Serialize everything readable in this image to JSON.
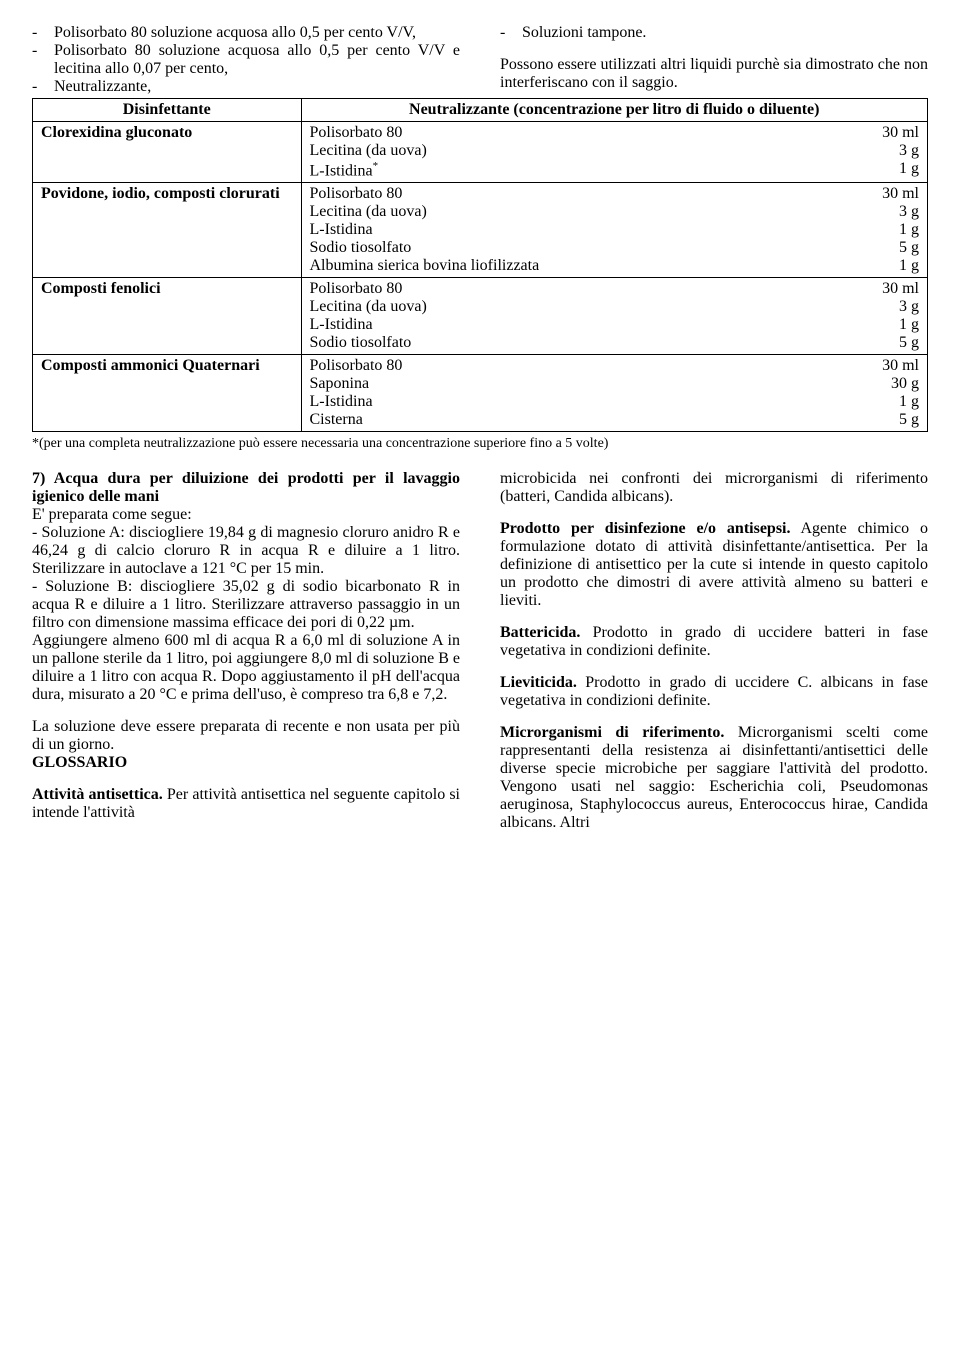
{
  "topLeftItems": [
    "Polisorbato 80 soluzione acquosa allo 0,5 per cento V/V,",
    "Polisorbato 80 soluzione acquosa allo 0,5 per cento V/V e lecitina allo 0,07 per cento,",
    "Neutralizzante,"
  ],
  "topRightItem": "Soluzioni tampone.",
  "topRightPara": "Possono essere utilizzati altri liquidi purchè sia dimostrato che non interferiscano con il saggio.",
  "tableHeader": {
    "left": "Disinfettante",
    "right": "Neutralizzante (concentrazione per litro di fluido o diluente)"
  },
  "tableRows": [
    {
      "disinfectant": "Clorexidina gluconato",
      "ingredients": [
        {
          "name": "Polisorbato 80",
          "amount": "30 ml"
        },
        {
          "name": "Lecitina (da uova)",
          "amount": "3 g"
        },
        {
          "name": "L-Istidina",
          "sup": "*",
          "smallcap": true,
          "amount": "1 g"
        }
      ]
    },
    {
      "disinfectant": "Povidone, iodio, composti clorurati",
      "ingredients": [
        {
          "name": "Polisorbato 80",
          "amount": "30 ml"
        },
        {
          "name": "Lecitina (da uova)",
          "amount": "3 g"
        },
        {
          "name": "L-Istidina",
          "smallcap": true,
          "amount": "1 g"
        },
        {
          "name": "Sodio tiosolfato",
          "amount": "5 g"
        },
        {
          "name": "Albumina sierica bovina liofilizzata",
          "amount": "1 g"
        }
      ]
    },
    {
      "disinfectant": "Composti fenolici",
      "ingredients": [
        {
          "name": "Polisorbato 80",
          "amount": "30 ml"
        },
        {
          "name": "Lecitina (da uova)",
          "amount": "3 g"
        },
        {
          "name": "L-Istidina",
          "smallcap": true,
          "amount": "1 g"
        },
        {
          "name": "Sodio tiosolfato",
          "amount": "5 g"
        }
      ]
    },
    {
      "disinfectant": "Composti ammonici Quaternari",
      "ingredients": [
        {
          "name": "Polisorbato 80",
          "amount": "30 ml"
        },
        {
          "name": "Saponina",
          "amount": "30 g"
        },
        {
          "name": "L-Istidina",
          "smallcap": true,
          "amount": "1 g"
        },
        {
          "name": "Cisterna",
          "amount": "5 g"
        }
      ]
    }
  ],
  "footnote": "*(per una completa neutralizzazione può essere necessaria una concentrazione superiore fino a 5  volte)",
  "leftCol": {
    "sec7Title": "7) Acqua dura per diluizione dei prodotti per il lavaggio igienico delle mani",
    "sec7Intro": "E' preparata come segue:",
    "sec7SolA": "- Soluzione A: disciogliere 19,84 g di magnesio cloruro anidro R e 46,24 g di calcio cloruro R in acqua R e diluire a 1 litro. Sterilizzare in autoclave a 121 °C per 15 min.",
    "sec7SolB": "-  Soluzione B: disciogliere 35,02 g di sodio bicarbonato R in acqua R e diluire a 1 litro. Sterilizzare attraverso passaggio in un filtro con dimensione massima efficace dei pori di 0,22 µm.",
    "sec7Add": "Aggiungere almeno 600 ml  di  acqua R  a 6,0 ml di soluzione A in un pallone sterile da 1 litro, poi aggiungere 8,0 ml di soluzione B e diluire a 1 litro con acqua R. Dopo aggiustamento il pH dell'acqua dura, misurato a 20 °C e prima dell'uso, è compreso tra 6,8 e 7,2.",
    "sec7Note": "La soluzione deve essere preparata di recente e non usata per più di un giorno.",
    "glossarioTitle": "GLOSSARIO",
    "attivitaTitle": "Attività antisettica.",
    "attivitaBody": " Per attività antisettica nel seguente capitolo si intende l'attività"
  },
  "rightCol": {
    "microbicida": "microbicida nei confronti dei microrganismi di riferimento (batteri, Candida albicans).",
    "prodottoTitle": "Prodotto per disinfezione e/o antisepsi.",
    "prodottoBody": " Agente chimico o formulazione dotato di attività disinfettante/antisettica. Per la definizione di antisettico per la cute si intende in questo capitolo un prodotto che dimostri di avere attività almeno su batteri e lieviti.",
    "battericidaTitle": "Battericida.",
    "battericidaBody": " Prodotto in grado di uccidere batteri in fase vegetativa in condizioni definite.",
    "lieviticidaTitle": "Lieviticida.",
    "lieviticidaBody": " Prodotto in grado di uccidere C. albicans in fase vegetativa in condizioni definite.",
    "microrgTitle": "Microrganismi di riferimento.",
    "microrgBody": " Microrganismi scelti come rappresentanti della resistenza ai disinfettanti/antisettici delle diverse specie microbiche per saggiare l'attività del prodotto. Vengono usati nel saggio: Escherichia coli, Pseudomonas aeruginosa, Staphylococcus aureus, Enterococcus hirae, Candida albicans. Altri"
  }
}
